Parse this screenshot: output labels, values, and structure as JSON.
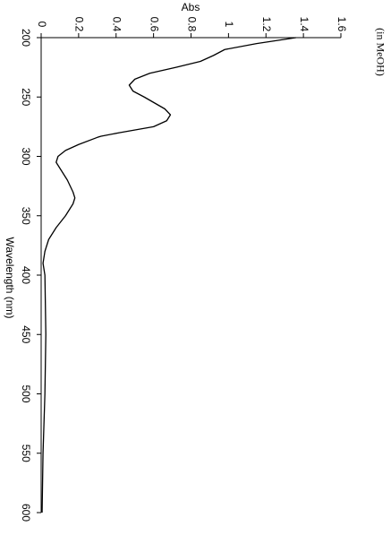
{
  "chart_data": {
    "type": "line",
    "title": "Abs",
    "x_label": "Wavelength (nm)",
    "annotation": "(in MeOH)",
    "x": [
      200,
      205,
      210,
      215,
      220,
      225,
      230,
      235,
      240,
      245,
      250,
      260,
      265,
      270,
      275,
      280,
      283,
      284,
      290,
      295,
      300,
      305,
      310,
      320,
      330,
      335,
      340,
      350,
      360,
      370,
      380,
      390,
      400,
      450,
      500,
      550,
      600
    ],
    "values": [
      1.36,
      1.15,
      0.98,
      0.92,
      0.85,
      0.72,
      0.58,
      0.5,
      0.47,
      0.49,
      0.55,
      0.66,
      0.69,
      0.67,
      0.6,
      0.42,
      0.32,
      0.3,
      0.2,
      0.13,
      0.09,
      0.08,
      0.1,
      0.14,
      0.17,
      0.18,
      0.17,
      0.13,
      0.08,
      0.04,
      0.02,
      0.01,
      0.02,
      0.025,
      0.02,
      0.01,
      0.005
    ],
    "color": "#000000",
    "xlim": [
      200,
      600
    ],
    "xticks": [
      200,
      250,
      300,
      350,
      400,
      450,
      500,
      550,
      600
    ],
    "ylim": [
      0,
      1.6
    ],
    "yticks": [
      0,
      0.2,
      0.4,
      0.6,
      0.8,
      1,
      1.2,
      1.4,
      1.6
    ]
  }
}
